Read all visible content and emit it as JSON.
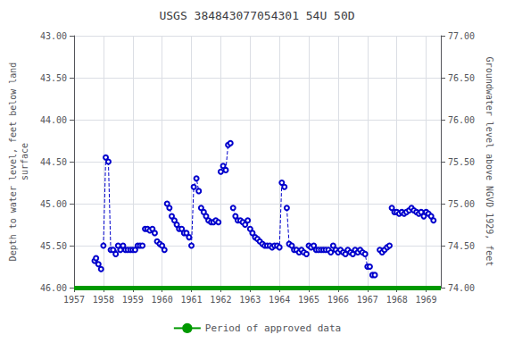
{
  "chart_data": {
    "type": "line",
    "title": "USGS 384843077054301 54U 50D",
    "ylabel": "Depth to water level, feet below land\nsurface",
    "y2label": "Groundwater level above NGVD 1929, feet",
    "xlim": [
      1957.0,
      1969.5
    ],
    "xticks": [
      1957,
      1958,
      1959,
      1960,
      1961,
      1962,
      1963,
      1964,
      1965,
      1966,
      1967,
      1968,
      1969
    ],
    "ylim": [
      46.0,
      43.0
    ],
    "yticks": [
      {
        "value": 43.0,
        "label": "43.00"
      },
      {
        "value": 43.5,
        "label": "43.50"
      },
      {
        "value": 44.0,
        "label": "44.00"
      },
      {
        "value": 44.5,
        "label": "44.50"
      },
      {
        "value": 45.0,
        "label": "45.00"
      },
      {
        "value": 45.5,
        "label": "45.50"
      },
      {
        "value": 46.0,
        "label": "46.00"
      }
    ],
    "y2lim": [
      74.0,
      77.0
    ],
    "y2ticks": [
      {
        "value": 74.0,
        "label": "74.00"
      },
      {
        "value": 74.5,
        "label": "74.50"
      },
      {
        "value": 75.0,
        "label": "75.00"
      },
      {
        "value": 75.5,
        "label": "75.50"
      },
      {
        "value": 76.0,
        "label": "76.00"
      },
      {
        "value": 76.5,
        "label": "76.50"
      },
      {
        "value": 77.0,
        "label": "77.00"
      }
    ],
    "grid": true,
    "legend": "bottom",
    "color": "#0000cc",
    "line_style": "dashed",
    "marker": "open circle",
    "series": [
      {
        "x": [
          1957.7,
          1957.75,
          1957.83,
          1957.92
        ],
        "values": [
          45.68,
          45.65,
          45.72,
          45.78
        ]
      },
      {
        "x": [
          1958.0,
          1958.08
        ],
        "values": [
          45.5,
          44.45
        ]
      },
      {
        "x": [
          1958.17,
          1958.25,
          1958.33,
          1958.42,
          1958.5,
          1958.58,
          1958.67,
          1958.75
        ],
        "values": [
          44.5,
          45.55,
          45.55,
          45.6,
          45.5,
          45.55,
          45.5,
          45.55
        ]
      },
      {
        "x": [
          1958.83,
          1958.92,
          1959.0,
          1959.08,
          1959.17,
          1959.25,
          1959.33
        ],
        "values": [
          45.55,
          45.55,
          45.55,
          45.55,
          45.5,
          45.5,
          45.5
        ]
      },
      {
        "x": [
          1959.42,
          1959.5,
          1959.58,
          1959.67,
          1959.75
        ],
        "values": [
          45.3,
          45.3,
          45.32,
          45.3,
          45.35
        ]
      },
      {
        "x": [
          1959.83,
          1959.92,
          1960.0,
          1960.08
        ],
        "values": [
          45.45,
          45.48,
          45.5,
          45.55
        ]
      },
      {
        "x": [
          1960.17,
          1960.25,
          1960.33,
          1960.42,
          1960.5,
          1960.58,
          1960.67,
          1960.75,
          1960.83,
          1960.92
        ],
        "values": [
          45.0,
          45.05,
          45.15,
          45.2,
          45.25,
          45.3,
          45.3,
          45.35,
          45.35,
          45.4
        ]
      },
      {
        "x": [
          1961.0,
          1961.08,
          1961.17,
          1961.25
        ],
        "values": [
          45.5,
          44.8,
          44.7,
          44.85
        ]
      },
      {
        "x": [
          1961.33,
          1961.42,
          1961.5,
          1961.58,
          1961.67,
          1961.75,
          1961.83,
          1961.92
        ],
        "values": [
          45.05,
          45.1,
          45.15,
          45.2,
          45.22,
          45.22,
          45.2,
          45.22
        ]
      },
      {
        "x": [
          1962.0,
          1962.08,
          1962.17,
          1962.25,
          1962.33
        ],
        "values": [
          44.62,
          44.55,
          44.6,
          44.3,
          44.28
        ]
      },
      {
        "x": [
          1962.42,
          1962.5,
          1962.58,
          1962.67,
          1962.75,
          1962.83,
          1962.92
        ],
        "values": [
          45.05,
          45.15,
          45.2,
          45.2,
          45.22,
          45.25,
          45.2
        ]
      },
      {
        "x": [
          1963.0,
          1963.08,
          1963.17,
          1963.25,
          1963.33,
          1963.42,
          1963.5,
          1963.58,
          1963.67,
          1963.75,
          1963.83
        ],
        "values": [
          45.3,
          45.35,
          45.4,
          45.42,
          45.45,
          45.48,
          45.5,
          45.5,
          45.5,
          45.52,
          45.5
        ]
      },
      {
        "x": [
          1963.92,
          1964.0,
          1964.08,
          1964.17
        ],
        "values": [
          45.5,
          45.52,
          44.75,
          44.8
        ]
      },
      {
        "x": [
          1964.25,
          1964.33,
          1964.42,
          1964.5,
          1964.58,
          1964.67,
          1964.75,
          1964.83,
          1964.92
        ],
        "values": [
          45.05,
          45.48,
          45.5,
          45.55,
          45.55,
          45.58,
          45.55,
          45.58,
          45.6
        ]
      },
      {
        "x": [
          1965.0,
          1965.08,
          1965.17,
          1965.25,
          1965.33,
          1965.42,
          1965.5,
          1965.58,
          1965.67,
          1965.75
        ],
        "values": [
          45.5,
          45.52,
          45.5,
          45.55,
          45.55,
          45.55,
          45.55,
          45.55,
          45.55,
          45.58
        ]
      },
      {
        "x": [
          1965.83,
          1965.92,
          1966.0,
          1966.08,
          1966.17,
          1966.25,
          1966.33,
          1966.42,
          1966.5,
          1966.58,
          1966.67,
          1966.75
        ],
        "values": [
          45.5,
          45.55,
          45.58,
          45.55,
          45.58,
          45.6,
          45.55,
          45.58,
          45.6,
          45.55,
          45.58,
          45.55
        ]
      },
      {
        "x": [
          1966.83,
          1966.92,
          1967.0,
          1967.08
        ],
        "values": [
          45.58,
          45.6,
          45.75,
          45.75
        ]
      },
      {
        "x": [
          1967.17,
          1967.25
        ],
        "values": [
          45.85,
          45.85
        ]
      },
      {
        "x": [
          1967.42,
          1967.5,
          1967.58,
          1967.67,
          1967.75
        ],
        "values": [
          45.55,
          45.58,
          45.55,
          45.52,
          45.5
        ]
      },
      {
        "x": [
          1967.83,
          1967.92,
          1968.0,
          1968.08,
          1968.17,
          1968.25,
          1968.33,
          1968.42,
          1968.5,
          1968.58,
          1968.67,
          1968.75,
          1968.83,
          1968.92,
          1969.0,
          1969.08,
          1969.17,
          1969.25
        ],
        "values": [
          45.05,
          45.1,
          45.1,
          45.12,
          45.1,
          45.12,
          45.1,
          45.08,
          45.05,
          45.08,
          45.1,
          45.12,
          45.1,
          45.15,
          45.1,
          45.12,
          45.15,
          45.2
        ]
      },
      {
        "name": "Period of approved data",
        "type": "hline",
        "color": "#009900",
        "values": [
          46.0
        ]
      }
    ]
  }
}
